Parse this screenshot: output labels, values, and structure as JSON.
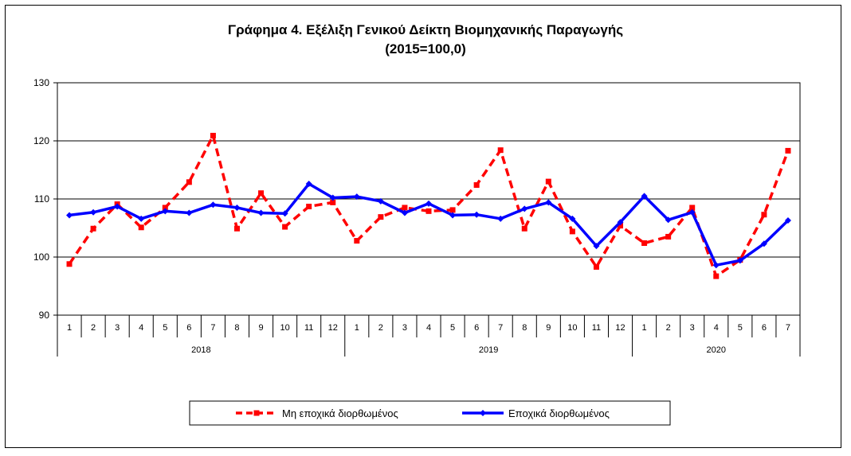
{
  "chart_data": {
    "type": "line",
    "title": "Γράφημα 4. Εξέλιξη Γενικού Δείκτη Βιομηχανικής Παραγωγής",
    "subtitle": "(2015=100,0)",
    "xlabel": "",
    "ylabel": "",
    "ylim": [
      90,
      130
    ],
    "yticks": [
      90,
      100,
      110,
      120,
      130
    ],
    "grid": true,
    "legend_position": "bottom",
    "categories": [
      "1",
      "2",
      "3",
      "4",
      "5",
      "6",
      "7",
      "8",
      "9",
      "10",
      "11",
      "12",
      "1",
      "2",
      "3",
      "4",
      "5",
      "6",
      "7",
      "8",
      "9",
      "10",
      "11",
      "12",
      "1",
      "2",
      "3",
      "4",
      "5",
      "6",
      "7"
    ],
    "groups": [
      {
        "label": "2018",
        "count": 12
      },
      {
        "label": "2019",
        "count": 12
      },
      {
        "label": "2020",
        "count": 7
      }
    ],
    "series": [
      {
        "name": "Μη εποχικά διορθωμένος",
        "color": "#ff0000",
        "style": "dashed",
        "marker": "square",
        "values": [
          98.8,
          104.9,
          109.1,
          105.1,
          108.5,
          112.9,
          120.9,
          104.9,
          111.0,
          105.2,
          108.7,
          109.4,
          102.8,
          106.9,
          108.5,
          107.9,
          108.1,
          112.4,
          118.4,
          104.9,
          113.0,
          104.4,
          98.3,
          105.4,
          102.4,
          103.5,
          108.5,
          96.7,
          99.5,
          107.3,
          118.3
        ]
      },
      {
        "name": "Εποχικά διορθωμένος",
        "color": "#0000ff",
        "style": "solid",
        "marker": "diamond",
        "values": [
          107.2,
          107.7,
          108.7,
          106.6,
          107.9,
          107.6,
          109.0,
          108.5,
          107.6,
          107.5,
          112.6,
          110.2,
          110.4,
          109.6,
          107.6,
          109.2,
          107.2,
          107.3,
          106.6,
          108.3,
          109.4,
          106.6,
          101.9,
          106.0,
          110.5,
          106.4,
          107.7,
          98.6,
          99.4,
          102.3,
          106.3
        ]
      }
    ]
  }
}
